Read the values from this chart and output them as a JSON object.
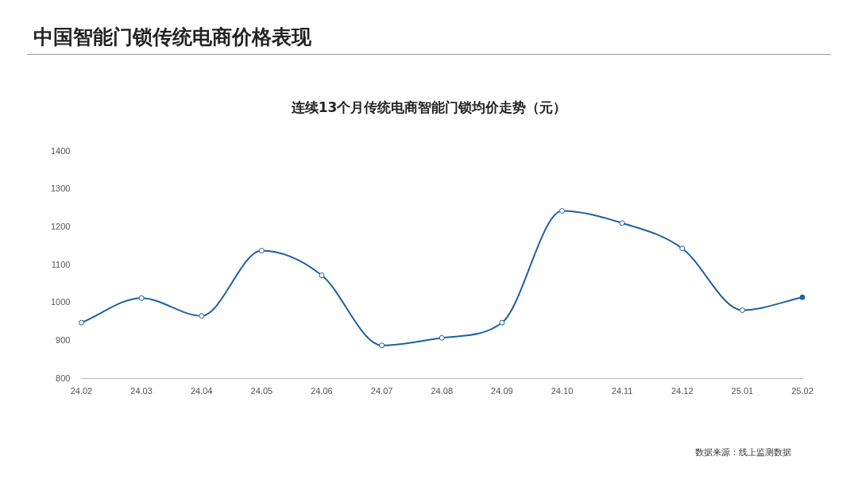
{
  "chart_data": {
    "type": "line",
    "title": "中国智能门锁传统电商价格表现",
    "subtitle": "连续13个月传统电商智能门锁均价走势（元）",
    "categories": [
      "24.02",
      "24.03",
      "24.04",
      "24.05",
      "24.06",
      "24.07",
      "24.08",
      "24.09",
      "24.10",
      "24.11",
      "24.12",
      "25.01",
      "25.02"
    ],
    "series": [
      {
        "color": "#1f5f9e",
        "values": [
          948,
          1013,
          966,
          1138,
          1073,
          888,
          908,
          948,
          1243,
          1211,
          1144,
          981,
          1015
        ]
      }
    ],
    "ylim": [
      800,
      1400
    ],
    "yticks": [
      800,
      900,
      1000,
      1100,
      1200,
      1300,
      1400
    ],
    "grid": false,
    "legend": false,
    "marker": "circle",
    "line_style": "solid",
    "annotations": [
      "数据来源：线上监测数据"
    ]
  }
}
